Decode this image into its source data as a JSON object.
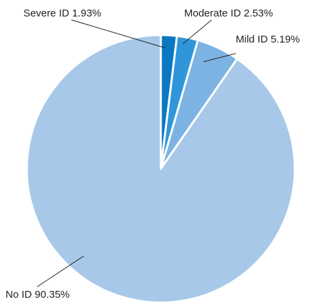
{
  "chart_data": {
    "type": "pie",
    "slices": [
      {
        "label": "Severe ID",
        "value": 1.93,
        "display": "Severe ID 1.93%",
        "color": "#0a78c2"
      },
      {
        "label": "Moderate ID",
        "value": 2.53,
        "display": "Moderate ID 2.53%",
        "color": "#2f97d9"
      },
      {
        "label": "Mild ID",
        "value": 5.19,
        "display": "Mild ID 5.19%",
        "color": "#7cb3e3"
      },
      {
        "label": "No ID",
        "value": 90.35,
        "display": "No ID 90.35%",
        "color": "#a7c8e8"
      }
    ],
    "start": "12 o'clock",
    "direction": "clockwise",
    "legend": "none"
  }
}
